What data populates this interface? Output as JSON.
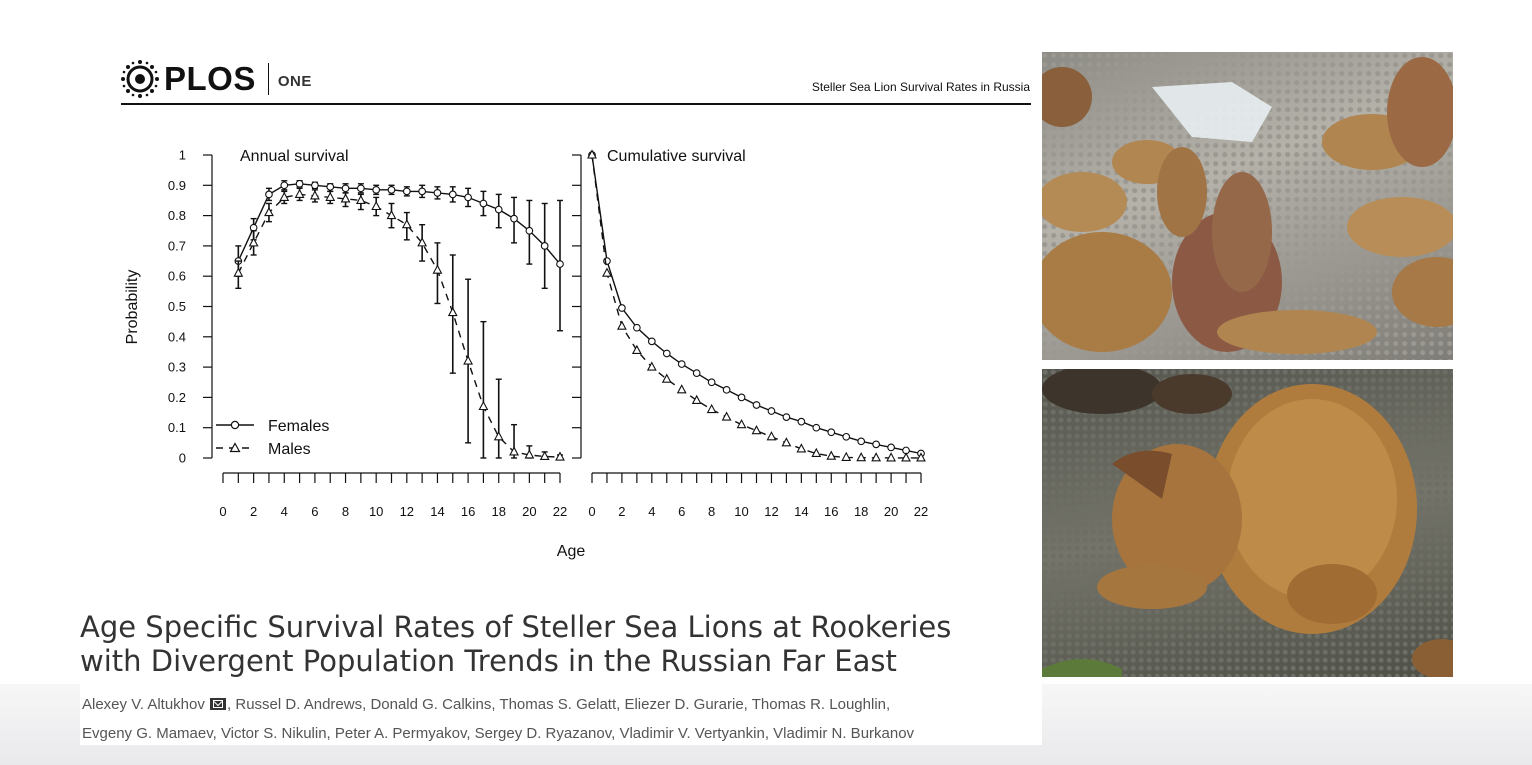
{
  "header": {
    "journal_word": "PLOS",
    "journal_sub": "ONE",
    "running_head": "Steller Sea Lion Survival Rates in Russia"
  },
  "figure": {
    "ylabel": "Probability",
    "xlabel": "Age",
    "panel_left_title": "Annual survival",
    "panel_right_title": "Cumulative survival",
    "legend": [
      "Females",
      "Males"
    ]
  },
  "chart_data": [
    {
      "type": "line",
      "title": "Annual survival",
      "xlabel": "Age",
      "ylabel": "Probability",
      "xlim": [
        0,
        22
      ],
      "ylim": [
        0,
        1
      ],
      "xticks": [
        0,
        2,
        4,
        6,
        8,
        10,
        12,
        14,
        16,
        18,
        20,
        22
      ],
      "yticks": [
        0,
        0.1,
        0.2,
        0.3,
        0.4,
        0.5,
        0.6,
        0.7,
        0.8,
        0.9,
        1
      ],
      "legend_position": "bottom-left",
      "series": [
        {
          "name": "Females",
          "marker": "circle",
          "line": "solid",
          "x": [
            1,
            2,
            3,
            4,
            5,
            6,
            7,
            8,
            9,
            10,
            11,
            12,
            13,
            14,
            15,
            16,
            17,
            18,
            19,
            20,
            21,
            22
          ],
          "y": [
            0.65,
            0.76,
            0.87,
            0.9,
            0.905,
            0.9,
            0.895,
            0.89,
            0.89,
            0.885,
            0.885,
            0.88,
            0.88,
            0.875,
            0.87,
            0.86,
            0.84,
            0.82,
            0.79,
            0.75,
            0.7,
            0.64
          ],
          "err_low": [
            0.6,
            0.72,
            0.85,
            0.885,
            0.895,
            0.89,
            0.88,
            0.875,
            0.875,
            0.87,
            0.87,
            0.865,
            0.86,
            0.855,
            0.845,
            0.83,
            0.8,
            0.76,
            0.71,
            0.64,
            0.56,
            0.42
          ],
          "err_high": [
            0.7,
            0.79,
            0.89,
            0.915,
            0.915,
            0.91,
            0.905,
            0.905,
            0.905,
            0.9,
            0.9,
            0.895,
            0.9,
            0.895,
            0.895,
            0.89,
            0.88,
            0.87,
            0.86,
            0.85,
            0.84,
            0.85
          ]
        },
        {
          "name": "Males",
          "marker": "triangle",
          "line": "dashed",
          "x": [
            1,
            2,
            3,
            4,
            5,
            6,
            7,
            8,
            9,
            10,
            11,
            12,
            13,
            14,
            15,
            16,
            17,
            18,
            19,
            20,
            21,
            22
          ],
          "y": [
            0.61,
            0.71,
            0.81,
            0.86,
            0.87,
            0.865,
            0.86,
            0.855,
            0.85,
            0.83,
            0.8,
            0.77,
            0.71,
            0.62,
            0.48,
            0.32,
            0.17,
            0.07,
            0.02,
            0.01,
            0.005,
            0.003
          ],
          "err_low": [
            0.56,
            0.67,
            0.78,
            0.84,
            0.85,
            0.845,
            0.84,
            0.83,
            0.82,
            0.8,
            0.76,
            0.72,
            0.65,
            0.51,
            0.28,
            0.05,
            0.0,
            0.0,
            0.0,
            0.0,
            0.0,
            0.0
          ],
          "err_high": [
            0.65,
            0.75,
            0.84,
            0.88,
            0.89,
            0.885,
            0.88,
            0.875,
            0.87,
            0.86,
            0.84,
            0.81,
            0.77,
            0.71,
            0.67,
            0.59,
            0.45,
            0.26,
            0.11,
            0.04,
            0.02,
            0.01
          ]
        }
      ]
    },
    {
      "type": "line",
      "title": "Cumulative survival",
      "xlabel": "Age",
      "xlim": [
        0,
        22
      ],
      "ylim": [
        0,
        1
      ],
      "xticks": [
        0,
        2,
        4,
        6,
        8,
        10,
        12,
        14,
        16,
        18,
        20,
        22
      ],
      "series": [
        {
          "name": "Females",
          "marker": "circle",
          "line": "solid",
          "x": [
            0,
            1,
            2,
            3,
            4,
            5,
            6,
            7,
            8,
            9,
            10,
            11,
            12,
            13,
            14,
            15,
            16,
            17,
            18,
            19,
            20,
            21,
            22
          ],
          "y": [
            1.0,
            0.65,
            0.495,
            0.43,
            0.385,
            0.345,
            0.31,
            0.28,
            0.25,
            0.225,
            0.2,
            0.175,
            0.155,
            0.135,
            0.12,
            0.1,
            0.085,
            0.07,
            0.055,
            0.045,
            0.035,
            0.025,
            0.015
          ]
        },
        {
          "name": "Males",
          "marker": "triangle",
          "line": "dashed",
          "x": [
            0,
            1,
            2,
            3,
            4,
            5,
            6,
            7,
            8,
            9,
            10,
            11,
            12,
            13,
            14,
            15,
            16,
            17,
            18,
            19,
            20,
            21,
            22
          ],
          "y": [
            1.0,
            0.61,
            0.435,
            0.355,
            0.3,
            0.26,
            0.225,
            0.19,
            0.16,
            0.135,
            0.11,
            0.09,
            0.07,
            0.05,
            0.03,
            0.015,
            0.006,
            0.002,
            0.001,
            0.0005,
            0.0003,
            0.0002,
            0.0001
          ]
        }
      ]
    }
  ],
  "paper": {
    "title_lines": [
      "Age Specific Survival Rates of Steller Sea Lions at Rookeries",
      "with Divergent Population Trends in the Russian Far East"
    ],
    "authors_line1": [
      "Alexey V. Altukhov",
      "Russel D. Andrews,",
      "Donald G. Calkins,",
      "Thomas S. Gelatt,",
      "Eliezer D. Gurarie,",
      "Thomas R. Loughlin,"
    ],
    "authors_line2": [
      "Evgeny G. Mamaev,",
      "Victor S. Nikulin,",
      "Peter A. Permyakov,",
      "Sergey D. Ryazanov,",
      "Vladimir V. Vertyankin,",
      "Vladimir N. Burkanov"
    ]
  },
  "colors": {
    "title": "#333333",
    "authors": "#555555",
    "chart_ink": "#111111"
  },
  "icons": [
    "plos-logo-icon",
    "email-icon"
  ]
}
